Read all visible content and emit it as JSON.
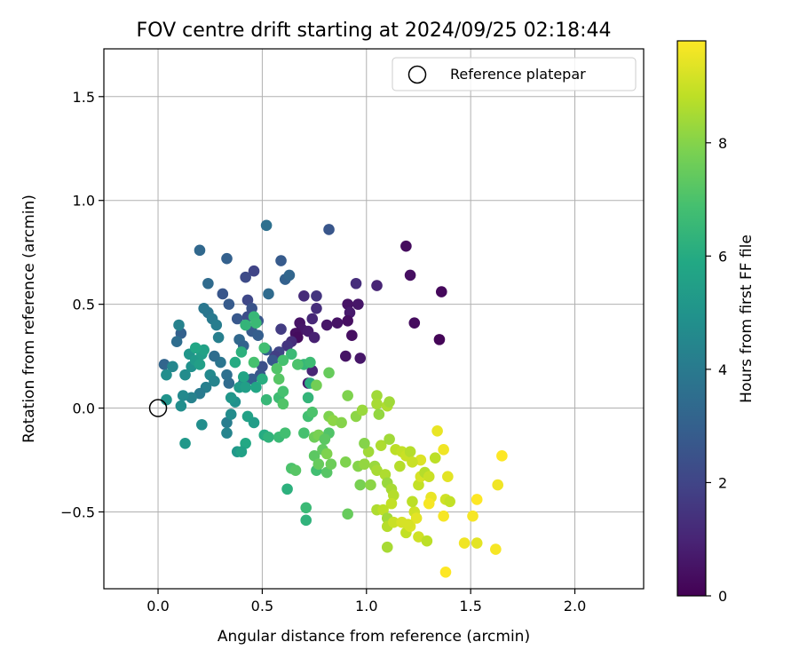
{
  "chart_data": {
    "type": "scatter",
    "title": "FOV centre drift starting at 2024/09/25 02:18:44",
    "xlabel": "Angular distance from reference (arcmin)",
    "ylabel": "Rotation from reference (arcmin)",
    "xlim": [
      -0.26,
      2.33
    ],
    "ylim": [
      -0.87,
      1.73
    ],
    "xticks": [
      0.0,
      0.5,
      1.0,
      1.5,
      2.0
    ],
    "xtick_labels": [
      "0.0",
      "0.5",
      "1.0",
      "1.5",
      "2.0"
    ],
    "yticks": [
      -0.5,
      0.0,
      0.5,
      1.0,
      1.5
    ],
    "ytick_labels": [
      "−0.5",
      "0.0",
      "0.5",
      "1.0",
      "1.5"
    ],
    "grid": true,
    "legend": {
      "position": "top-right",
      "entries": [
        "Reference platepar"
      ]
    },
    "reference_point": {
      "x": 0.0,
      "y": 0.0
    },
    "colorbar": {
      "label": "Hours from first FF file",
      "colormap": "viridis",
      "range": [
        0,
        9.8
      ],
      "ticks": [
        0,
        2,
        4,
        6,
        8
      ],
      "tick_labels": [
        "0",
        "2",
        "4",
        "6",
        "8"
      ]
    },
    "points": [
      {
        "x": 1.19,
        "y": 0.78,
        "c": 0.3
      },
      {
        "x": 1.21,
        "y": 0.64,
        "c": 0.4
      },
      {
        "x": 1.36,
        "y": 0.56,
        "c": 0.2
      },
      {
        "x": 1.23,
        "y": 0.41,
        "c": 0.3
      },
      {
        "x": 1.35,
        "y": 0.33,
        "c": 0.1
      },
      {
        "x": 1.05,
        "y": 0.59,
        "c": 1.0
      },
      {
        "x": 0.95,
        "y": 0.6,
        "c": 1.3
      },
      {
        "x": 0.82,
        "y": 0.86,
        "c": 2.6
      },
      {
        "x": 0.52,
        "y": 0.88,
        "c": 3.6
      },
      {
        "x": 0.96,
        "y": 0.5,
        "c": 0.6
      },
      {
        "x": 0.91,
        "y": 0.5,
        "c": 0.5
      },
      {
        "x": 0.92,
        "y": 0.46,
        "c": 0.7
      },
      {
        "x": 0.91,
        "y": 0.42,
        "c": 0.4
      },
      {
        "x": 0.86,
        "y": 0.41,
        "c": 0.5
      },
      {
        "x": 0.81,
        "y": 0.4,
        "c": 0.6
      },
      {
        "x": 0.68,
        "y": 0.41,
        "c": 0.5
      },
      {
        "x": 0.69,
        "y": 0.38,
        "c": 0.6
      },
      {
        "x": 0.66,
        "y": 0.36,
        "c": 0.4
      },
      {
        "x": 0.67,
        "y": 0.34,
        "c": 0.3
      },
      {
        "x": 0.72,
        "y": 0.37,
        "c": 0.7
      },
      {
        "x": 0.75,
        "y": 0.34,
        "c": 0.9
      },
      {
        "x": 0.7,
        "y": 0.54,
        "c": 1.2
      },
      {
        "x": 0.76,
        "y": 0.54,
        "c": 1.5
      },
      {
        "x": 0.76,
        "y": 0.48,
        "c": 1.3
      },
      {
        "x": 0.74,
        "y": 0.43,
        "c": 1.1
      },
      {
        "x": 0.93,
        "y": 0.35,
        "c": 0.4
      },
      {
        "x": 0.9,
        "y": 0.25,
        "c": 0.5
      },
      {
        "x": 0.97,
        "y": 0.24,
        "c": 0.6
      },
      {
        "x": 0.72,
        "y": 0.12,
        "c": 0.7
      },
      {
        "x": 0.74,
        "y": 0.18,
        "c": 1.0
      },
      {
        "x": 0.64,
        "y": 0.32,
        "c": 1.3
      },
      {
        "x": 0.62,
        "y": 0.3,
        "c": 1.5
      },
      {
        "x": 0.59,
        "y": 0.38,
        "c": 1.7
      },
      {
        "x": 0.58,
        "y": 0.27,
        "c": 2.0
      },
      {
        "x": 0.56,
        "y": 0.25,
        "c": 1.8
      },
      {
        "x": 0.61,
        "y": 0.62,
        "c": 3.0
      },
      {
        "x": 0.63,
        "y": 0.64,
        "c": 3.2
      },
      {
        "x": 0.59,
        "y": 0.71,
        "c": 2.8
      },
      {
        "x": 0.53,
        "y": 0.55,
        "c": 3.4
      },
      {
        "x": 0.46,
        "y": 0.66,
        "c": 2.0
      },
      {
        "x": 0.42,
        "y": 0.63,
        "c": 2.2
      },
      {
        "x": 0.33,
        "y": 0.72,
        "c": 3.0
      },
      {
        "x": 0.2,
        "y": 0.76,
        "c": 3.3
      },
      {
        "x": 0.24,
        "y": 0.6,
        "c": 3.4
      },
      {
        "x": 0.31,
        "y": 0.55,
        "c": 2.6
      },
      {
        "x": 0.34,
        "y": 0.5,
        "c": 2.8
      },
      {
        "x": 0.43,
        "y": 0.52,
        "c": 2.1
      },
      {
        "x": 0.45,
        "y": 0.48,
        "c": 2.5
      },
      {
        "x": 0.38,
        "y": 0.43,
        "c": 2.7
      },
      {
        "x": 0.43,
        "y": 0.44,
        "c": 2.3
      },
      {
        "x": 0.48,
        "y": 0.42,
        "c": 2.6
      },
      {
        "x": 0.45,
        "y": 0.37,
        "c": 2.8
      },
      {
        "x": 0.48,
        "y": 0.35,
        "c": 2.9
      },
      {
        "x": 0.39,
        "y": 0.33,
        "c": 3.3
      },
      {
        "x": 0.41,
        "y": 0.3,
        "c": 3.1
      },
      {
        "x": 0.52,
        "y": 0.28,
        "c": 3.0
      },
      {
        "x": 0.55,
        "y": 0.23,
        "c": 2.7
      },
      {
        "x": 0.5,
        "y": 0.2,
        "c": 2.4
      },
      {
        "x": 0.49,
        "y": 0.16,
        "c": 2.6
      },
      {
        "x": 0.45,
        "y": 0.14,
        "c": 2.9
      },
      {
        "x": 0.41,
        "y": 0.12,
        "c": 3.2
      },
      {
        "x": 0.34,
        "y": 0.12,
        "c": 3.4
      },
      {
        "x": 0.33,
        "y": 0.16,
        "c": 3.6
      },
      {
        "x": 0.3,
        "y": 0.22,
        "c": 3.8
      },
      {
        "x": 0.27,
        "y": 0.25,
        "c": 3.5
      },
      {
        "x": 0.24,
        "y": 0.46,
        "c": 3.8
      },
      {
        "x": 0.26,
        "y": 0.43,
        "c": 4.0
      },
      {
        "x": 0.28,
        "y": 0.4,
        "c": 4.1
      },
      {
        "x": 0.22,
        "y": 0.48,
        "c": 3.9
      },
      {
        "x": 0.29,
        "y": 0.34,
        "c": 4.2
      },
      {
        "x": 0.11,
        "y": 0.36,
        "c": 3.0
      },
      {
        "x": 0.09,
        "y": 0.32,
        "c": 3.5
      },
      {
        "x": 0.1,
        "y": 0.4,
        "c": 4.3
      },
      {
        "x": 0.03,
        "y": 0.21,
        "c": 3.2
      },
      {
        "x": 0.07,
        "y": 0.2,
        "c": 4.5
      },
      {
        "x": 0.04,
        "y": 0.16,
        "c": 4.8
      },
      {
        "x": 0.13,
        "y": 0.16,
        "c": 4.7
      },
      {
        "x": 0.16,
        "y": 0.2,
        "c": 4.9
      },
      {
        "x": 0.15,
        "y": 0.26,
        "c": 5.1
      },
      {
        "x": 0.18,
        "y": 0.23,
        "c": 5.3
      },
      {
        "x": 0.21,
        "y": 0.26,
        "c": 5.4
      },
      {
        "x": 0.22,
        "y": 0.28,
        "c": 5.6
      },
      {
        "x": 0.18,
        "y": 0.29,
        "c": 5.8
      },
      {
        "x": 0.2,
        "y": 0.21,
        "c": 5.5
      },
      {
        "x": 0.25,
        "y": 0.16,
        "c": 4.6
      },
      {
        "x": 0.27,
        "y": 0.13,
        "c": 4.4
      },
      {
        "x": 0.23,
        "y": 0.1,
        "c": 4.2
      },
      {
        "x": 0.2,
        "y": 0.07,
        "c": 4.0
      },
      {
        "x": 0.16,
        "y": 0.05,
        "c": 4.3
      },
      {
        "x": 0.12,
        "y": 0.06,
        "c": 4.6
      },
      {
        "x": 0.11,
        "y": 0.01,
        "c": 4.8
      },
      {
        "x": 0.04,
        "y": 0.04,
        "c": 5.0
      },
      {
        "x": 0.21,
        "y": -0.08,
        "c": 4.8
      },
      {
        "x": 0.13,
        "y": -0.17,
        "c": 5.2
      },
      {
        "x": 0.33,
        "y": -0.07,
        "c": 4.1
      },
      {
        "x": 0.33,
        "y": -0.12,
        "c": 4.4
      },
      {
        "x": 0.35,
        "y": -0.03,
        "c": 4.7
      },
      {
        "x": 0.37,
        "y": 0.03,
        "c": 4.9
      },
      {
        "x": 0.35,
        "y": 0.05,
        "c": 5.1
      },
      {
        "x": 0.39,
        "y": 0.1,
        "c": 5.3
      },
      {
        "x": 0.42,
        "y": 0.1,
        "c": 5.5
      },
      {
        "x": 0.41,
        "y": 0.15,
        "c": 5.7
      },
      {
        "x": 0.37,
        "y": 0.22,
        "c": 6.0
      },
      {
        "x": 0.4,
        "y": 0.27,
        "c": 6.2
      },
      {
        "x": 0.42,
        "y": 0.4,
        "c": 6.4
      },
      {
        "x": 0.46,
        "y": 0.44,
        "c": 6.5
      },
      {
        "x": 0.47,
        "y": 0.41,
        "c": 6.6
      },
      {
        "x": 0.51,
        "y": 0.29,
        "c": 6.8
      },
      {
        "x": 0.46,
        "y": 0.22,
        "c": 6.9
      },
      {
        "x": 0.5,
        "y": 0.14,
        "c": 6.1
      },
      {
        "x": 0.47,
        "y": 0.1,
        "c": 5.8
      },
      {
        "x": 0.43,
        "y": -0.04,
        "c": 5.6
      },
      {
        "x": 0.46,
        "y": -0.07,
        "c": 5.4
      },
      {
        "x": 0.42,
        "y": -0.17,
        "c": 5.9
      },
      {
        "x": 0.38,
        "y": -0.21,
        "c": 5.2
      },
      {
        "x": 0.4,
        "y": -0.21,
        "c": 5.6
      },
      {
        "x": 0.51,
        "y": -0.13,
        "c": 6.0
      },
      {
        "x": 0.53,
        "y": -0.14,
        "c": 6.3
      },
      {
        "x": 0.52,
        "y": 0.04,
        "c": 6.5
      },
      {
        "x": 0.58,
        "y": 0.05,
        "c": 6.7
      },
      {
        "x": 0.6,
        "y": 0.08,
        "c": 6.9
      },
      {
        "x": 0.6,
        "y": 0.02,
        "c": 7.1
      },
      {
        "x": 0.58,
        "y": -0.14,
        "c": 6.6
      },
      {
        "x": 0.61,
        "y": -0.12,
        "c": 6.8
      },
      {
        "x": 0.62,
        "y": -0.39,
        "c": 6.2
      },
      {
        "x": 0.64,
        "y": -0.29,
        "c": 7.0
      },
      {
        "x": 0.66,
        "y": -0.3,
        "c": 7.2
      },
      {
        "x": 0.7,
        "y": -0.12,
        "c": 6.9
      },
      {
        "x": 0.72,
        "y": -0.04,
        "c": 6.8
      },
      {
        "x": 0.74,
        "y": -0.02,
        "c": 7.0
      },
      {
        "x": 0.72,
        "y": 0.05,
        "c": 6.4
      },
      {
        "x": 0.73,
        "y": 0.12,
        "c": 6.1
      },
      {
        "x": 0.7,
        "y": 0.21,
        "c": 6.5
      },
      {
        "x": 0.73,
        "y": 0.22,
        "c": 6.7
      },
      {
        "x": 0.67,
        "y": 0.21,
        "c": 7.0
      },
      {
        "x": 0.64,
        "y": 0.26,
        "c": 6.6
      },
      {
        "x": 0.6,
        "y": 0.23,
        "c": 6.9
      },
      {
        "x": 0.57,
        "y": 0.19,
        "c": 7.1
      },
      {
        "x": 0.58,
        "y": 0.14,
        "c": 7.2
      },
      {
        "x": 0.71,
        "y": -0.48,
        "c": 6.6
      },
      {
        "x": 0.71,
        "y": -0.54,
        "c": 6.3
      },
      {
        "x": 0.76,
        "y": -0.3,
        "c": 6.8
      },
      {
        "x": 0.75,
        "y": -0.23,
        "c": 7.3
      },
      {
        "x": 0.77,
        "y": -0.27,
        "c": 7.5
      },
      {
        "x": 0.75,
        "y": -0.14,
        "c": 7.6
      },
      {
        "x": 0.77,
        "y": -0.13,
        "c": 7.8
      },
      {
        "x": 0.79,
        "y": -0.2,
        "c": 7.4
      },
      {
        "x": 0.81,
        "y": -0.31,
        "c": 7.2
      },
      {
        "x": 0.83,
        "y": -0.27,
        "c": 7.6
      },
      {
        "x": 0.81,
        "y": -0.22,
        "c": 7.9
      },
      {
        "x": 0.82,
        "y": -0.12,
        "c": 7.1
      },
      {
        "x": 0.8,
        "y": -0.15,
        "c": 7.3
      },
      {
        "x": 0.82,
        "y": -0.04,
        "c": 7.9
      },
      {
        "x": 0.84,
        "y": -0.06,
        "c": 8.1
      },
      {
        "x": 0.88,
        "y": -0.07,
        "c": 8.0
      },
      {
        "x": 0.76,
        "y": 0.11,
        "c": 7.7
      },
      {
        "x": 0.82,
        "y": 0.17,
        "c": 7.5
      },
      {
        "x": 0.91,
        "y": 0.06,
        "c": 7.9
      },
      {
        "x": 0.95,
        "y": -0.04,
        "c": 8.1
      },
      {
        "x": 0.98,
        "y": -0.01,
        "c": 8.3
      },
      {
        "x": 1.05,
        "y": 0.06,
        "c": 8.4
      },
      {
        "x": 1.05,
        "y": 0.02,
        "c": 8.5
      },
      {
        "x": 1.06,
        "y": -0.03,
        "c": 8.2
      },
      {
        "x": 1.1,
        "y": 0.01,
        "c": 8.6
      },
      {
        "x": 1.11,
        "y": 0.03,
        "c": 8.4
      },
      {
        "x": 0.91,
        "y": -0.51,
        "c": 7.5
      },
      {
        "x": 0.9,
        "y": -0.26,
        "c": 7.9
      },
      {
        "x": 0.96,
        "y": -0.28,
        "c": 8.0
      },
      {
        "x": 0.99,
        "y": -0.27,
        "c": 8.2
      },
      {
        "x": 1.01,
        "y": -0.21,
        "c": 8.4
      },
      {
        "x": 0.99,
        "y": -0.17,
        "c": 8.0
      },
      {
        "x": 0.97,
        "y": -0.37,
        "c": 7.8
      },
      {
        "x": 1.02,
        "y": -0.37,
        "c": 8.1
      },
      {
        "x": 1.04,
        "y": -0.28,
        "c": 8.3
      },
      {
        "x": 1.05,
        "y": -0.3,
        "c": 8.5
      },
      {
        "x": 1.07,
        "y": -0.18,
        "c": 8.6
      },
      {
        "x": 1.11,
        "y": -0.15,
        "c": 8.4
      },
      {
        "x": 1.14,
        "y": -0.2,
        "c": 8.8
      },
      {
        "x": 1.17,
        "y": -0.21,
        "c": 8.9
      },
      {
        "x": 1.19,
        "y": -0.23,
        "c": 9.0
      },
      {
        "x": 1.21,
        "y": -0.21,
        "c": 8.7
      },
      {
        "x": 1.09,
        "y": -0.32,
        "c": 8.6
      },
      {
        "x": 1.1,
        "y": -0.36,
        "c": 8.3
      },
      {
        "x": 1.12,
        "y": -0.39,
        "c": 8.5
      },
      {
        "x": 1.13,
        "y": -0.42,
        "c": 8.7
      },
      {
        "x": 1.12,
        "y": -0.46,
        "c": 8.9
      },
      {
        "x": 1.05,
        "y": -0.49,
        "c": 8.6
      },
      {
        "x": 1.08,
        "y": -0.49,
        "c": 8.8
      },
      {
        "x": 1.1,
        "y": -0.53,
        "c": 8.4
      },
      {
        "x": 1.1,
        "y": -0.57,
        "c": 8.7
      },
      {
        "x": 1.13,
        "y": -0.55,
        "c": 9.0
      },
      {
        "x": 1.1,
        "y": -0.67,
        "c": 8.5
      },
      {
        "x": 1.17,
        "y": -0.55,
        "c": 9.2
      },
      {
        "x": 1.19,
        "y": -0.6,
        "c": 8.9
      },
      {
        "x": 1.21,
        "y": -0.57,
        "c": 9.3
      },
      {
        "x": 1.23,
        "y": -0.5,
        "c": 9.1
      },
      {
        "x": 1.22,
        "y": -0.45,
        "c": 8.8
      },
      {
        "x": 1.25,
        "y": -0.37,
        "c": 8.9
      },
      {
        "x": 1.26,
        "y": -0.33,
        "c": 9.2
      },
      {
        "x": 1.28,
        "y": -0.31,
        "c": 8.7
      },
      {
        "x": 1.26,
        "y": -0.25,
        "c": 9.3
      },
      {
        "x": 1.3,
        "y": -0.33,
        "c": 9.0
      },
      {
        "x": 1.33,
        "y": -0.24,
        "c": 8.8
      },
      {
        "x": 1.34,
        "y": -0.11,
        "c": 9.5
      },
      {
        "x": 1.37,
        "y": -0.2,
        "c": 9.6
      },
      {
        "x": 1.39,
        "y": -0.33,
        "c": 9.4
      },
      {
        "x": 1.38,
        "y": -0.44,
        "c": 9.1
      },
      {
        "x": 1.4,
        "y": -0.45,
        "c": 8.9
      },
      {
        "x": 1.31,
        "y": -0.43,
        "c": 9.5
      },
      {
        "x": 1.3,
        "y": -0.46,
        "c": 9.7
      },
      {
        "x": 1.24,
        "y": -0.53,
        "c": 9.4
      },
      {
        "x": 1.25,
        "y": -0.62,
        "c": 9.1
      },
      {
        "x": 1.29,
        "y": -0.64,
        "c": 8.8
      },
      {
        "x": 1.37,
        "y": -0.52,
        "c": 9.7
      },
      {
        "x": 1.38,
        "y": -0.79,
        "c": 9.8
      },
      {
        "x": 1.47,
        "y": -0.65,
        "c": 9.6
      },
      {
        "x": 1.53,
        "y": -0.65,
        "c": 9.4
      },
      {
        "x": 1.51,
        "y": -0.52,
        "c": 9.7
      },
      {
        "x": 1.53,
        "y": -0.44,
        "c": 9.8
      },
      {
        "x": 1.62,
        "y": -0.68,
        "c": 9.7
      },
      {
        "x": 1.63,
        "y": -0.37,
        "c": 9.6
      },
      {
        "x": 1.65,
        "y": -0.23,
        "c": 9.8
      },
      {
        "x": 1.2,
        "y": -0.56,
        "c": 9.2
      },
      {
        "x": 1.16,
        "y": -0.28,
        "c": 8.7
      },
      {
        "x": 1.22,
        "y": -0.26,
        "c": 9.0
      }
    ]
  }
}
